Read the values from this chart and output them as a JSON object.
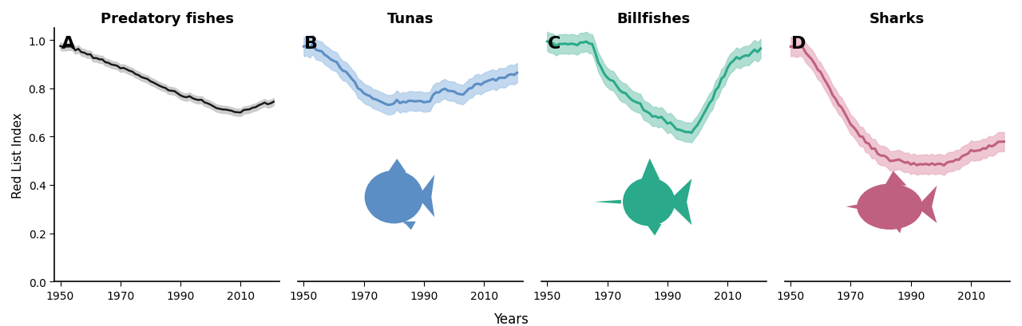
{
  "panel_labels": [
    "A",
    "B",
    "C",
    "D"
  ],
  "panel_titles": [
    "Predatory fishes",
    "Tunas",
    "Billfishes",
    "Sharks"
  ],
  "ylabel": "Red List Index",
  "xlabel": "Years",
  "colors": {
    "predatory": "#1a1a1a",
    "predatory_ci": "#c0c0c0",
    "tunas": "#5b8ec4",
    "tunas_ci": "#a8c8e8",
    "billfishes": "#2aaa8a",
    "billfishes_ci": "#90d0c0",
    "sharks": "#c06080",
    "sharks_ci": "#e8b0c0"
  },
  "ylim": [
    0.0,
    1.05
  ],
  "yticks": [
    0.0,
    0.2,
    0.4,
    0.6,
    0.8,
    1.0
  ],
  "background": "#ffffff",
  "xstart": 1950,
  "xend": 2022
}
